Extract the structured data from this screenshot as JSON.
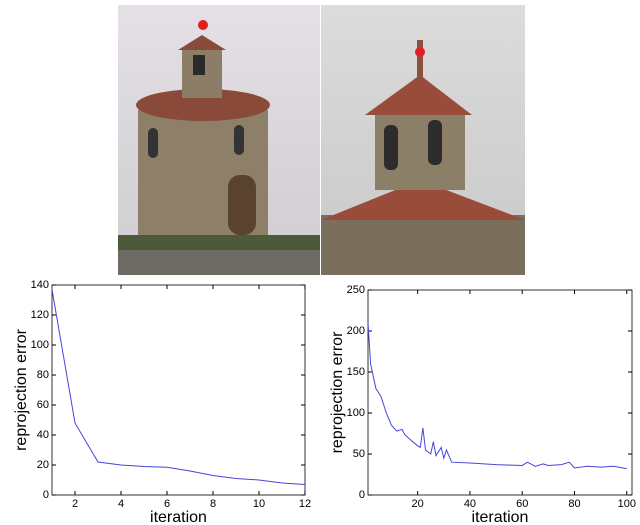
{
  "chart_data": [
    {
      "type": "line",
      "x_label": "iteration",
      "y_label": "reprojection error",
      "x": [
        1,
        2,
        3,
        4,
        5,
        6,
        7,
        8,
        9,
        10,
        11,
        12
      ],
      "series": [
        {
          "name": "reprojection error",
          "color": "#4646d8",
          "values": [
            137,
            48,
            22,
            20,
            19,
            18.5,
            16,
            13,
            11,
            10,
            8,
            7
          ]
        }
      ],
      "xlim": [
        1,
        12
      ],
      "xticks": [
        2,
        4,
        6,
        8,
        10,
        12
      ],
      "ylim": [
        0,
        140
      ],
      "yticks": [
        0,
        20,
        40,
        60,
        80,
        100,
        120,
        140
      ]
    },
    {
      "type": "line",
      "x_label": "iteration",
      "y_label": "reprojection error",
      "x": [
        1,
        2,
        4,
        6,
        8,
        10,
        12,
        14,
        15,
        17,
        20,
        21,
        22,
        23,
        25,
        26,
        27,
        29,
        30,
        31,
        33,
        40,
        50,
        60,
        62,
        65,
        68,
        70,
        75,
        78,
        80,
        85,
        90,
        95,
        100
      ],
      "series": [
        {
          "name": "reprojection error",
          "color": "#4646d8",
          "values": [
            210,
            160,
            130,
            120,
            100,
            85,
            78,
            80,
            74,
            68,
            60,
            58,
            82,
            55,
            50,
            65,
            48,
            58,
            45,
            55,
            40,
            39,
            37,
            36,
            40,
            35,
            38,
            36,
            37,
            40,
            33,
            35,
            34,
            35,
            32
          ]
        }
      ],
      "xlim": [
        1,
        102
      ],
      "xticks": [
        20,
        40,
        60,
        80,
        100
      ],
      "ylim": [
        0,
        250
      ],
      "yticks": [
        0,
        50,
        100,
        150,
        200,
        250
      ]
    }
  ]
}
